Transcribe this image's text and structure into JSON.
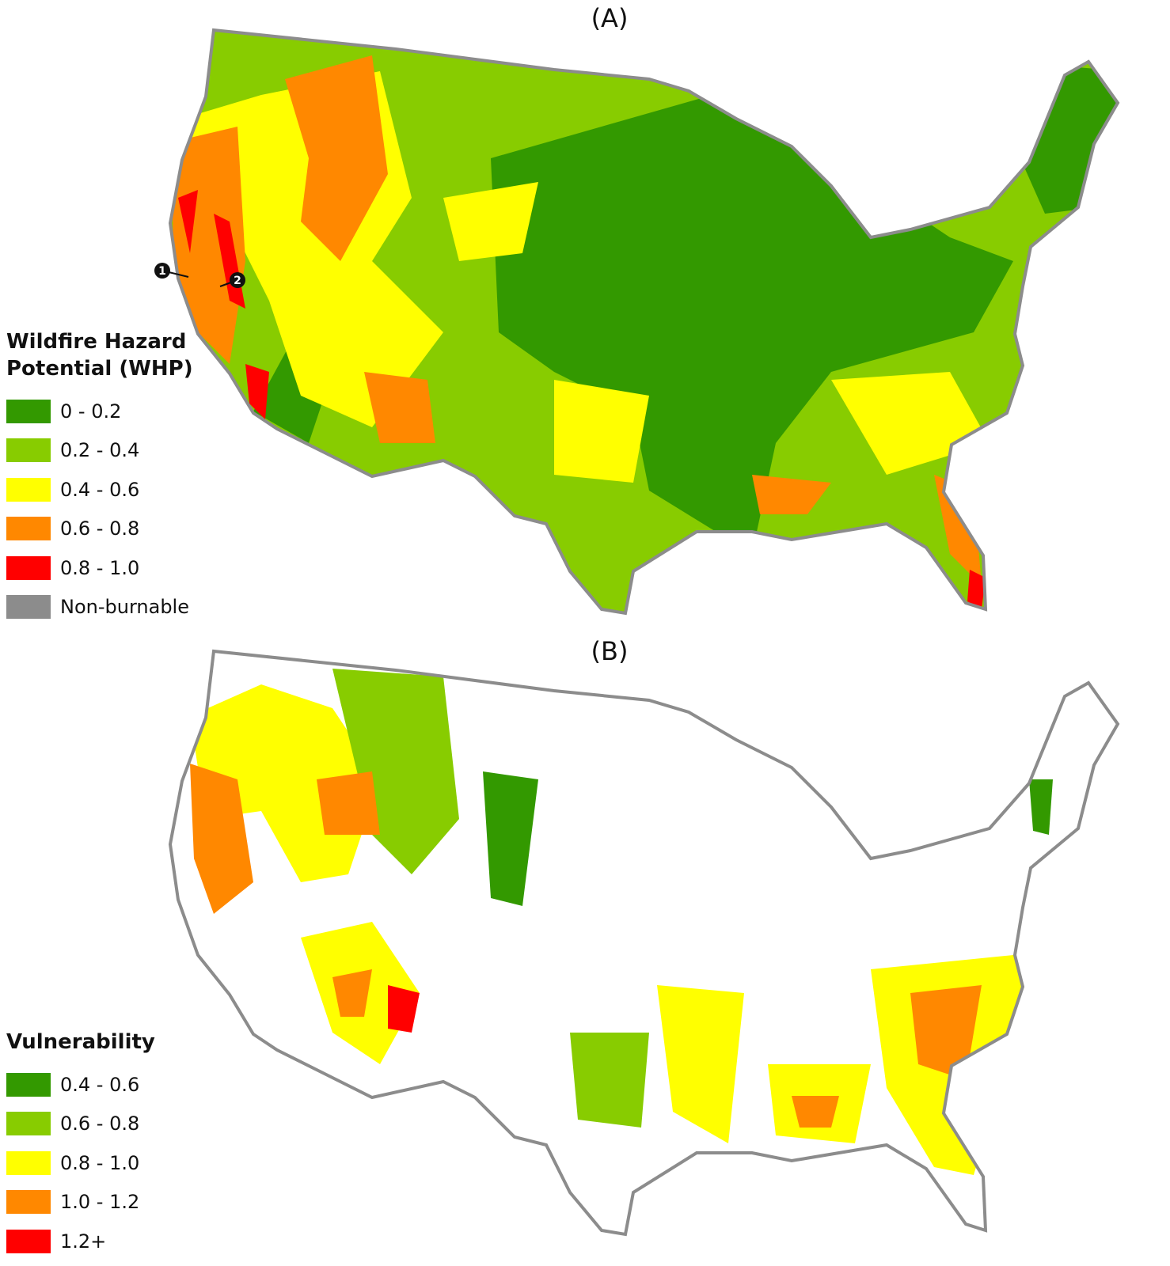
{
  "panels": [
    {
      "title": "(A)",
      "markers": [
        "1",
        "2"
      ],
      "legend": {
        "title": "Wildfire Hazard Potential (WHP)",
        "items": [
          {
            "label": "0 - 0.2",
            "color": "#339900"
          },
          {
            "label": "0.2 - 0.4",
            "color": "#88cc00"
          },
          {
            "label": "0.4 - 0.6",
            "color": "#ffff00"
          },
          {
            "label": "0.6 - 0.8",
            "color": "#ff8800"
          },
          {
            "label": "0.8 - 1.0",
            "color": "#ff0000"
          },
          {
            "label": "Non-burnable",
            "color": "#8c8c8c"
          }
        ]
      }
    },
    {
      "title": "(B)",
      "legend": {
        "title": "Vulnerability",
        "items": [
          {
            "label": "0.4 - 0.6",
            "color": "#339900"
          },
          {
            "label": "0.6 - 0.8",
            "color": "#88cc00"
          },
          {
            "label": "0.8 - 1.0",
            "color": "#ffff00"
          },
          {
            "label": "1.0 - 1.2",
            "color": "#ff8800"
          },
          {
            "label": "1.2+",
            "color": "#ff0000"
          }
        ]
      }
    }
  ]
}
